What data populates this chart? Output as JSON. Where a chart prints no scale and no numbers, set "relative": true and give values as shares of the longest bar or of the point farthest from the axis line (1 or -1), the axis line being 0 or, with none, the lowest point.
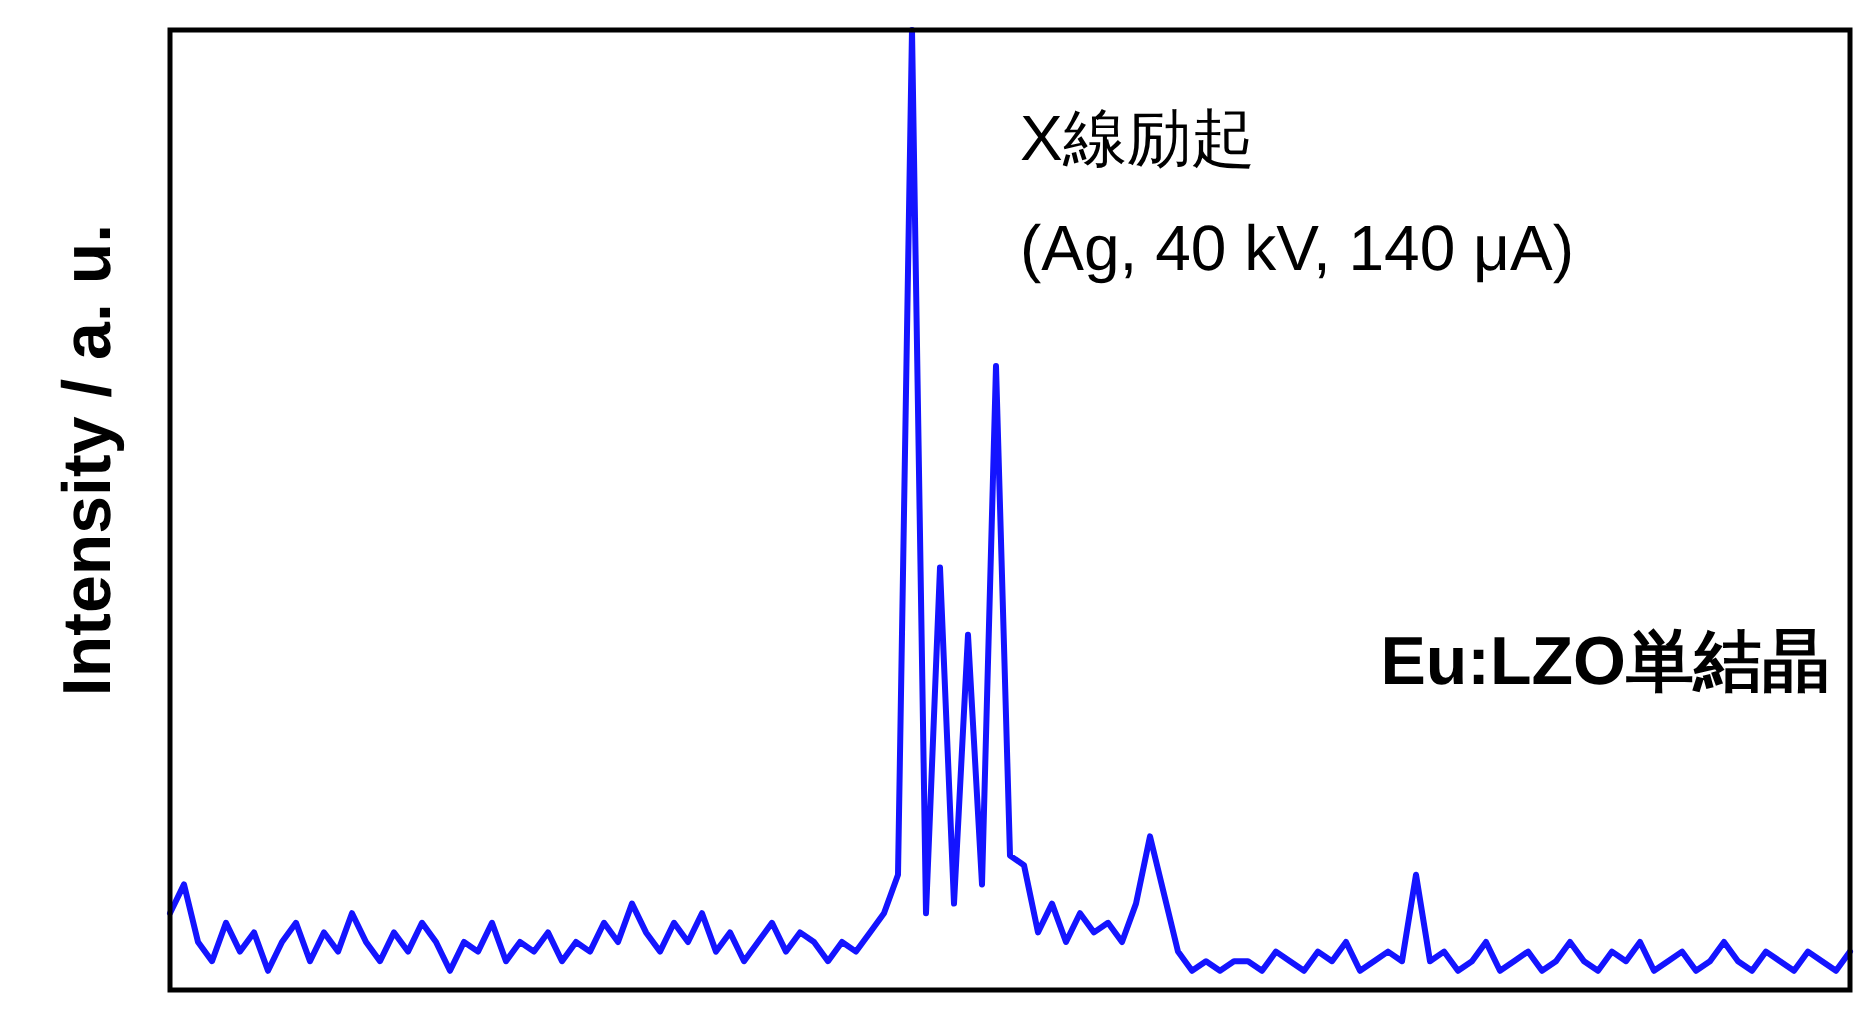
{
  "chart_data": {
    "type": "line",
    "relative": true,
    "ylabel": "Intensity / a. u.",
    "annotations": [
      "X線励起",
      "(Ag, 40 kV, 140 μA)",
      "Eu:LZO単結晶"
    ],
    "categories": [
      null,
      null,
      null,
      null,
      null,
      null,
      null,
      null,
      null,
      null,
      null,
      null,
      null,
      null,
      null,
      null,
      null,
      null,
      null,
      null,
      null,
      null,
      null,
      null,
      null,
      null,
      null,
      null,
      null,
      null,
      null,
      null,
      null,
      null,
      null,
      null,
      null,
      null,
      null,
      null,
      null,
      null,
      null,
      null,
      null,
      null,
      null,
      null,
      null,
      null,
      null,
      null,
      null,
      null,
      null,
      null,
      null,
      null,
      null,
      null,
      null,
      null,
      null,
      null,
      null,
      null,
      null,
      null,
      null,
      null,
      null,
      null,
      null,
      null,
      null,
      null,
      null,
      null,
      null,
      null,
      null,
      null,
      null,
      null,
      null,
      null,
      null,
      null,
      null,
      null,
      null,
      null,
      null,
      null,
      null,
      null,
      null,
      null,
      null,
      null,
      null,
      null,
      null,
      null,
      null,
      null,
      null,
      null,
      null,
      null,
      null,
      null,
      null,
      null,
      null,
      null,
      null,
      null,
      null,
      null,
      null
    ],
    "series": [
      {
        "color": "#1414ff",
        "values": [
          0.08,
          0.11,
          0.05,
          0.03,
          0.07,
          0.04,
          0.06,
          0.02,
          0.05,
          0.07,
          0.03,
          0.06,
          0.04,
          0.08,
          0.05,
          0.03,
          0.06,
          0.04,
          0.07,
          0.05,
          0.02,
          0.05,
          0.04,
          0.07,
          0.03,
          0.05,
          0.04,
          0.06,
          0.03,
          0.05,
          0.04,
          0.07,
          0.05,
          0.09,
          0.06,
          0.04,
          0.07,
          0.05,
          0.08,
          0.04,
          0.06,
          0.03,
          0.05,
          0.07,
          0.04,
          0.06,
          0.05,
          0.03,
          0.05,
          0.04,
          0.06,
          0.08,
          0.12,
          1.0,
          0.08,
          0.44,
          0.09,
          0.37,
          0.11,
          0.65,
          0.14,
          0.13,
          0.06,
          0.09,
          0.05,
          0.08,
          0.06,
          0.07,
          0.05,
          0.09,
          0.16,
          0.1,
          0.04,
          0.02,
          0.03,
          0.02,
          0.03,
          0.03,
          0.02,
          0.04,
          0.03,
          0.02,
          0.04,
          0.03,
          0.05,
          0.02,
          0.03,
          0.04,
          0.03,
          0.12,
          0.03,
          0.04,
          0.02,
          0.03,
          0.05,
          0.02,
          0.03,
          0.04,
          0.02,
          0.03,
          0.05,
          0.03,
          0.02,
          0.04,
          0.03,
          0.05,
          0.02,
          0.03,
          0.04,
          0.02,
          0.03,
          0.05,
          0.03,
          0.02,
          0.04,
          0.03,
          0.02,
          0.04,
          0.03,
          0.02,
          0.04
        ]
      }
    ],
    "grid": false
  }
}
